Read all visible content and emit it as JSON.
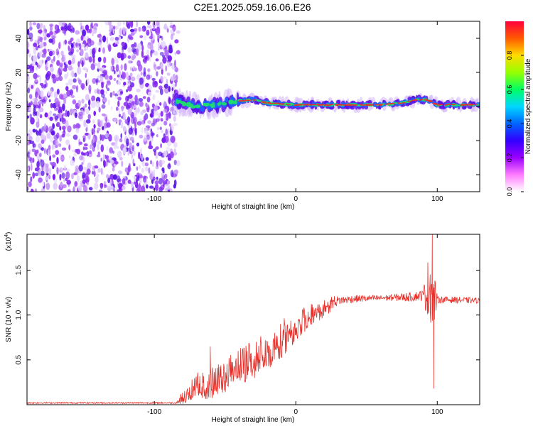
{
  "figure": {
    "title": "C2E1.2025.059.16.06.E26"
  },
  "chart_data": [
    {
      "type": "heatmap",
      "xlabel": "Height of straight line (km)",
      "ylabel": "Frequency (Hz)",
      "xlim": [
        -190,
        130
      ],
      "ylim": [
        -50,
        50
      ],
      "xticks": [
        -100,
        0,
        100
      ],
      "yticks": [
        -40,
        -20,
        0,
        20,
        40
      ],
      "noise_region_x": [
        -190,
        -83
      ],
      "ridge_x": [
        -85,
        -70,
        -55,
        -45,
        -30,
        -20,
        0,
        20,
        40,
        60,
        75,
        85,
        93,
        100,
        115,
        130
      ],
      "ridge_y": [
        3,
        0,
        1,
        3,
        4,
        2,
        1,
        1,
        1,
        1,
        2,
        4,
        4,
        1,
        1,
        1
      ],
      "colorbar": {
        "label": "Normalized spectral amplitude",
        "range": [
          0,
          1
        ],
        "ticks": [
          0.0,
          0.2,
          0.4,
          0.6,
          0.8
        ],
        "colors": [
          "#ffffff",
          "#ff7cff",
          "#9b00ff",
          "#3200ff",
          "#0066ff",
          "#00d7ff",
          "#00ff64",
          "#96ff00",
          "#ffdc00",
          "#ff5a00",
          "#ff003c"
        ]
      }
    },
    {
      "type": "line",
      "xlabel": "Height of straight line (km)",
      "ylabel": "SNR (10 * v/v)",
      "scale_label": "(x10",
      "scale_exp": "4",
      "xlim": [
        -190,
        130
      ],
      "ylim": [
        0,
        1.9
      ],
      "xticks": [
        -100,
        0,
        100
      ],
      "yticks": [
        0.5,
        1.0,
        1.5
      ],
      "ytick_labels": [
        "0.5",
        "1.0",
        "1.5"
      ],
      "line_color": "#e8302a",
      "envelope_x": [
        -190,
        -85,
        -78,
        -70,
        -60,
        -50,
        -40,
        -30,
        -20,
        -10,
        0,
        10,
        20,
        25,
        30,
        40,
        60,
        80,
        90,
        95,
        97,
        100,
        110,
        130
      ],
      "envelope_y": [
        0.02,
        0.02,
        0.15,
        0.3,
        0.35,
        0.45,
        0.55,
        0.62,
        0.75,
        0.85,
        1.0,
        1.08,
        1.12,
        1.14,
        1.16,
        1.18,
        1.19,
        1.2,
        1.22,
        1.3,
        1.18,
        1.17,
        1.17,
        1.16
      ],
      "noise_amp_x": [
        -190,
        -85,
        -78,
        -60,
        -40,
        -20,
        0,
        20,
        30,
        60,
        90,
        94,
        98,
        100,
        130
      ],
      "noise_amp_y": [
        0.008,
        0.008,
        0.12,
        0.25,
        0.28,
        0.3,
        0.25,
        0.12,
        0.05,
        0.03,
        0.06,
        0.4,
        0.3,
        0.04,
        0.03
      ],
      "spikes": [
        {
          "x": 96.5,
          "y": 1.9
        },
        {
          "x": 97.5,
          "y": 0.18
        },
        {
          "x": 95.0,
          "y": 1.45
        },
        {
          "x": -60.5,
          "y": 0.65
        }
      ]
    }
  ]
}
